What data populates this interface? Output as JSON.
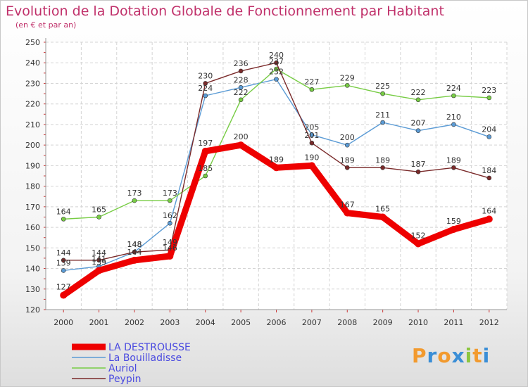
{
  "chart_data": {
    "type": "line",
    "title": "Evolution de la Dotation Globale de Fonctionnement par Habitant",
    "subtitle": "(en € et par an)",
    "xlabel": "",
    "ylabel": "",
    "x": [
      "2000",
      "2001",
      "2002",
      "2003",
      "2004",
      "2005",
      "2006",
      "2007",
      "2008",
      "2009",
      "2010",
      "2011",
      "2012"
    ],
    "yticks": [
      "120",
      "130",
      "140",
      "150",
      "160",
      "170",
      "180",
      "190",
      "200",
      "210",
      "220",
      "230",
      "240",
      "250"
    ],
    "ylim": [
      120,
      250
    ],
    "grid": true,
    "legend_position": "bottom-left",
    "series": [
      {
        "name": "LA DESTROUSSE",
        "color": "#ee0000",
        "thick": true,
        "values": [
          127,
          139,
          144,
          146,
          197,
          200,
          189,
          190,
          167,
          165,
          152,
          159,
          164
        ],
        "labels": [
          "127",
          "139",
          "144",
          "146",
          "197",
          "200",
          "189",
          "190",
          "167",
          "165",
          "152",
          "159",
          "164"
        ]
      },
      {
        "name": "La Bouilladisse",
        "color": "#5b9bd5",
        "thick": false,
        "values": [
          139,
          141,
          148,
          162,
          224,
          228,
          232,
          205,
          200,
          211,
          207,
          210,
          204
        ],
        "labels": [
          "139",
          "141",
          "148",
          "162",
          "224",
          "228",
          "232",
          "205",
          "200",
          "211",
          "207",
          "210",
          "204"
        ]
      },
      {
        "name": "Auriol",
        "color": "#77cc44",
        "thick": false,
        "values": [
          164,
          165,
          173,
          173,
          185,
          222,
          237,
          227,
          229,
          225,
          222,
          224,
          223
        ],
        "labels": [
          "164",
          "165",
          "173",
          "173",
          "185",
          "222",
          "237",
          "227",
          "229",
          "225",
          "222",
          "224",
          "223"
        ]
      },
      {
        "name": "Peypin",
        "color": "#7a2a2a",
        "thick": false,
        "values": [
          144,
          144,
          148,
          149,
          230,
          236,
          240,
          201,
          189,
          189,
          187,
          189,
          184
        ],
        "labels": [
          "144",
          "144",
          "148",
          "149",
          "230",
          "236",
          "240",
          "201",
          "189",
          "189",
          "187",
          "189",
          "184"
        ]
      }
    ]
  },
  "logo": {
    "letters": [
      "P",
      "r",
      "o",
      "x",
      "i",
      "t",
      "i"
    ],
    "colors": [
      "#f29a2e",
      "#3a8ed6",
      "#f29a2e",
      "#3a8ed6",
      "#8cc63f",
      "#f29a2e",
      "#3a8ed6"
    ]
  }
}
